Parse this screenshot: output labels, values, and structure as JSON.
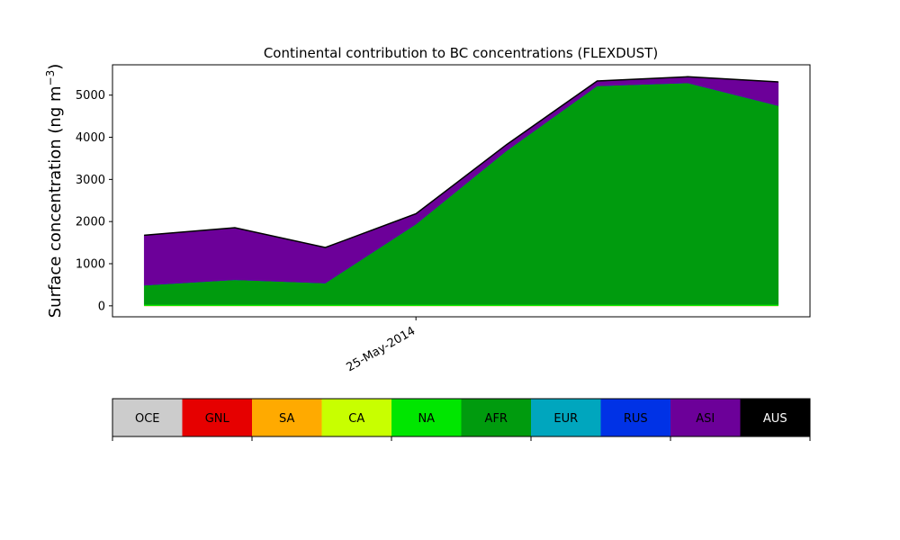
{
  "chart_data": {
    "type": "area",
    "title": "Continental contribution to BC concentrations (FLEXDUST)",
    "ylabel": "Surface concentration (ng m",
    "ylabel_unit_sup": "−3",
    "ylabel_close": ")",
    "x": [
      0,
      1,
      2,
      3,
      4,
      5,
      6,
      7
    ],
    "xlim": [
      -0.35,
      7.35
    ],
    "x_tick_labels": [
      {
        "x": 3,
        "label": "25-May-2014"
      }
    ],
    "ylim": [
      -260,
      5720
    ],
    "y_ticks": [
      0,
      1000,
      2000,
      3000,
      4000,
      5000
    ],
    "grid": false,
    "stacked": true,
    "series": [
      {
        "name": "OCE",
        "color": "#cccccc",
        "values": [
          0,
          0,
          0,
          0,
          0,
          0,
          0,
          0
        ]
      },
      {
        "name": "GNL",
        "color": "#e60000",
        "values": [
          0,
          0,
          0,
          0,
          0,
          0,
          0,
          0
        ]
      },
      {
        "name": "SA",
        "color": "#ffaa00",
        "values": [
          0,
          0,
          0,
          0,
          0,
          0,
          0,
          0
        ]
      },
      {
        "name": "CA",
        "color": "#c8ff00",
        "values": [
          5,
          5,
          5,
          5,
          5,
          5,
          5,
          5
        ]
      },
      {
        "name": "NA",
        "color": "#00e600",
        "values": [
          25,
          25,
          25,
          25,
          25,
          25,
          25,
          25
        ]
      },
      {
        "name": "AFR",
        "color": "#009b0e",
        "values": [
          460,
          590,
          510,
          1910,
          3650,
          5190,
          5260,
          4720
        ]
      },
      {
        "name": "EUR",
        "color": "#00a6be",
        "values": [
          0,
          0,
          0,
          0,
          0,
          0,
          0,
          0
        ]
      },
      {
        "name": "RUS",
        "color": "#0032e6",
        "values": [
          0,
          0,
          0,
          0,
          0,
          0,
          0,
          0
        ]
      },
      {
        "name": "ASI",
        "color": "#6c0099",
        "values": [
          1180,
          1230,
          840,
          240,
          140,
          110,
          140,
          560
        ]
      },
      {
        "name": "AUS",
        "color": "#000000",
        "values": [
          5,
          5,
          5,
          5,
          5,
          5,
          5,
          5
        ]
      }
    ],
    "legend": {
      "placement": "bottom",
      "text_colors": [
        "#000000",
        "#000000",
        "#000000",
        "#000000",
        "#000000",
        "#000000",
        "#000000",
        "#000000",
        "#000000",
        "#ffffff"
      ]
    }
  }
}
